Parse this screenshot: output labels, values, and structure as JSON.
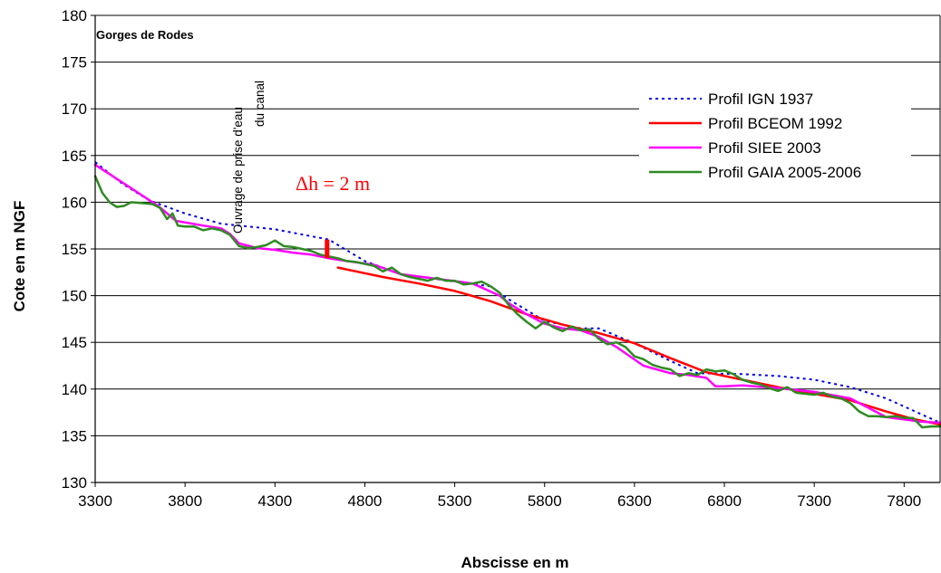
{
  "chart_data": {
    "type": "line",
    "title": "Gorges de Rodes",
    "xlabel": "Abscisse en m",
    "ylabel": "Cote en m NGF",
    "xlim": [
      3300,
      8000
    ],
    "ylim": [
      130,
      180
    ],
    "xticks": [
      3300,
      3800,
      4300,
      4800,
      5300,
      5800,
      6300,
      6800,
      7300,
      7800
    ],
    "yticks": [
      130,
      135,
      140,
      145,
      150,
      155,
      160,
      165,
      170,
      175,
      180
    ],
    "grid": "horizontal",
    "legend": "right",
    "series": [
      {
        "name": "Profil IGN 1937",
        "color": "#0000ee",
        "style": "dotted",
        "x": [
          3300,
          3450,
          3600,
          3800,
          4000,
          4300,
          4600,
          4800,
          5000,
          5300,
          5500,
          5600,
          5800,
          6000,
          6100,
          6300,
          6500,
          6650,
          6900,
          7100,
          7300,
          7500,
          7700,
          8000
        ],
        "y": [
          164.3,
          162.0,
          160.2,
          158.8,
          157.7,
          157.1,
          156.0,
          153.7,
          152.3,
          151.5,
          151.0,
          149.6,
          147.3,
          146.5,
          146.5,
          144.9,
          143.0,
          141.7,
          141.6,
          141.4,
          141.0,
          140.2,
          139.0,
          136.4
        ]
      },
      {
        "name": "Profil BCEOM 1992",
        "color": "#ff0000",
        "style": "solid",
        "x": [
          4650,
          4900,
          5100,
          5300,
          5500,
          5700,
          5900,
          6100,
          6300,
          6500,
          6700,
          6900,
          7100,
          7300,
          7500,
          7700,
          7850,
          8000
        ],
        "y": [
          153.0,
          152.0,
          151.3,
          150.5,
          149.4,
          148.0,
          146.9,
          146.0,
          144.9,
          143.3,
          141.8,
          141.0,
          140.2,
          139.5,
          138.8,
          137.6,
          136.8,
          136.2
        ]
      },
      {
        "name": "Profil SIEE 2003",
        "color": "#ff00ff",
        "style": "solid",
        "x": [
          3300,
          3500,
          3650,
          3750,
          3900,
          4000,
          4050,
          4100,
          4200,
          4300,
          4400,
          4500,
          4600,
          4700,
          4850,
          5000,
          5200,
          5400,
          5550,
          5600,
          5700,
          5800,
          5900,
          6000,
          6100,
          6200,
          6350,
          6500,
          6600,
          6700,
          6750,
          6800,
          6900,
          7100,
          7300,
          7500,
          7600,
          7700,
          7900,
          8000
        ],
        "y": [
          164.0,
          161.5,
          159.6,
          158.0,
          157.5,
          157.2,
          156.6,
          155.6,
          155.1,
          154.9,
          154.6,
          154.4,
          154.0,
          153.7,
          153.3,
          152.3,
          151.8,
          151.3,
          150.0,
          149.2,
          148.0,
          147.0,
          146.5,
          146.3,
          145.6,
          144.5,
          142.5,
          141.7,
          141.5,
          141.2,
          140.3,
          140.3,
          140.4,
          140.1,
          139.7,
          139.0,
          138.0,
          137.0,
          136.5,
          136.4
        ]
      },
      {
        "name": "Profil GAIA 2005-2006",
        "color": "#2e8b22",
        "style": "solid",
        "x": [
          3300,
          3340,
          3380,
          3420,
          3460,
          3500,
          3560,
          3620,
          3660,
          3700,
          3730,
          3760,
          3800,
          3850,
          3900,
          3950,
          4000,
          4050,
          4100,
          4150,
          4200,
          4250,
          4300,
          4350,
          4400,
          4450,
          4500,
          4550,
          4600,
          4650,
          4700,
          4750,
          4800,
          4850,
          4900,
          4950,
          5000,
          5050,
          5100,
          5150,
          5200,
          5250,
          5300,
          5350,
          5400,
          5450,
          5500,
          5550,
          5600,
          5650,
          5700,
          5750,
          5800,
          5850,
          5900,
          5950,
          6000,
          6050,
          6100,
          6150,
          6200,
          6250,
          6300,
          6350,
          6400,
          6450,
          6500,
          6550,
          6600,
          6650,
          6700,
          6750,
          6800,
          6850,
          6900,
          6950,
          7000,
          7050,
          7100,
          7150,
          7200,
          7250,
          7300,
          7350,
          7400,
          7450,
          7500,
          7550,
          7600,
          7650,
          7700,
          7750,
          7800,
          7850,
          7900,
          7950,
          8000
        ],
        "y": [
          162.8,
          161.0,
          160.0,
          159.5,
          159.6,
          160.0,
          159.9,
          159.8,
          159.4,
          158.2,
          158.8,
          157.5,
          157.4,
          157.4,
          157.0,
          157.2,
          157.0,
          156.5,
          155.3,
          155.1,
          155.2,
          155.4,
          155.9,
          155.3,
          155.2,
          155.0,
          154.8,
          154.4,
          154.2,
          154.0,
          153.7,
          153.6,
          153.4,
          153.2,
          152.6,
          153.0,
          152.3,
          152.0,
          151.8,
          151.6,
          151.9,
          151.6,
          151.6,
          151.2,
          151.3,
          151.5,
          151.0,
          150.3,
          149.0,
          148.0,
          147.2,
          146.5,
          147.2,
          146.6,
          146.2,
          146.7,
          146.3,
          146.4,
          145.4,
          144.8,
          145.0,
          144.5,
          143.5,
          143.2,
          142.6,
          142.3,
          142.1,
          141.4,
          141.7,
          141.5,
          142.1,
          141.9,
          142.0,
          141.6,
          141.0,
          140.7,
          140.5,
          140.1,
          139.8,
          140.2,
          139.6,
          139.5,
          139.4,
          139.6,
          139.2,
          139.0,
          138.5,
          137.6,
          137.1,
          137.1,
          137.0,
          137.1,
          136.9,
          136.9,
          135.9,
          136.0,
          136.0
        ]
      }
    ],
    "annotations": {
      "intake": [
        "Ouvrage de prise d'eau",
        "du canal"
      ],
      "dh": "Δh = 2 m",
      "dh_marker": {
        "x": 4590,
        "y1": 154.0,
        "y2": 156.0
      }
    }
  }
}
